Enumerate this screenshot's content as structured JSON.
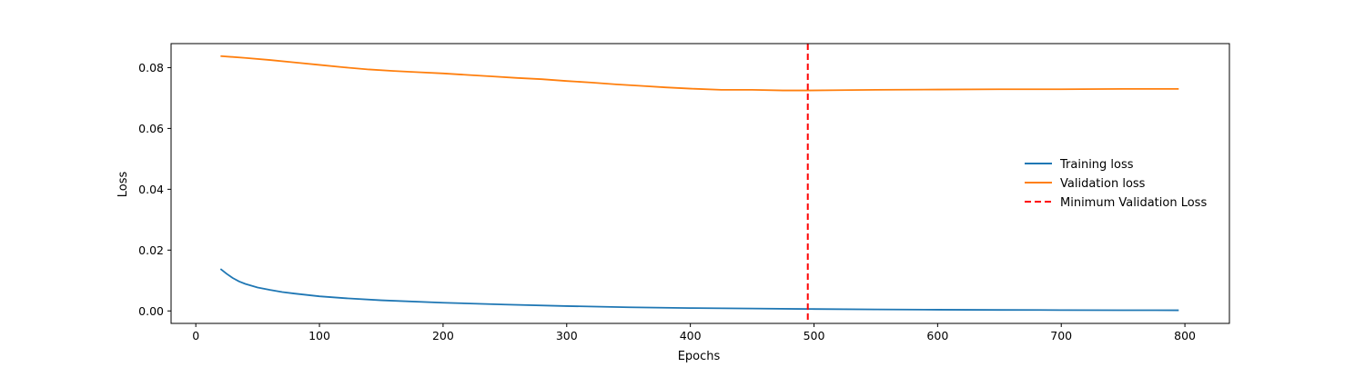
{
  "chart_data": {
    "type": "line",
    "title": "",
    "xlabel": "Epochs",
    "ylabel": "Loss",
    "xlim": [
      -20,
      836
    ],
    "ylim": [
      -0.0041,
      0.0879
    ],
    "xticks": [
      0,
      100,
      200,
      300,
      400,
      500,
      600,
      700,
      800
    ],
    "yticks": [
      0.0,
      0.02,
      0.04,
      0.06,
      0.08
    ],
    "xtick_labels": [
      "0",
      "100",
      "200",
      "300",
      "400",
      "500",
      "600",
      "700",
      "800"
    ],
    "ytick_labels": [
      "0.00",
      "0.02",
      "0.04",
      "0.06",
      "0.08"
    ],
    "legend_position": "center-right",
    "grid": false,
    "series": [
      {
        "name": "Training loss",
        "color": "#1f77b4",
        "style": "solid",
        "x": [
          20,
          25,
          30,
          35,
          40,
          50,
          60,
          70,
          80,
          100,
          120,
          150,
          200,
          250,
          300,
          350,
          400,
          450,
          500,
          550,
          600,
          650,
          700,
          750,
          795
        ],
        "y": [
          0.0138,
          0.0122,
          0.0108,
          0.0097,
          0.0089,
          0.0077,
          0.0069,
          0.0062,
          0.0057,
          0.0048,
          0.0042,
          0.0035,
          0.0027,
          0.0021,
          0.0016,
          0.0012,
          0.00095,
          0.00078,
          0.00062,
          0.0005,
          0.0004,
          0.00033,
          0.00028,
          0.00024,
          0.00022
        ]
      },
      {
        "name": "Validation loss",
        "color": "#ff7f0e",
        "style": "solid",
        "x": [
          20,
          40,
          60,
          80,
          100,
          120,
          140,
          160,
          180,
          200,
          220,
          240,
          260,
          280,
          300,
          320,
          340,
          360,
          380,
          400,
          425,
          450,
          475,
          495,
          520,
          550,
          600,
          650,
          700,
          750,
          795
        ],
        "y": [
          0.0838,
          0.0832,
          0.0825,
          0.0817,
          0.0809,
          0.0801,
          0.0794,
          0.0789,
          0.0785,
          0.0781,
          0.0776,
          0.0771,
          0.0766,
          0.0762,
          0.0756,
          0.0751,
          0.0745,
          0.074,
          0.0735,
          0.0731,
          0.0727,
          0.0727,
          0.0725,
          0.0725,
          0.0726,
          0.0727,
          0.0728,
          0.0729,
          0.0729,
          0.073,
          0.073
        ]
      }
    ],
    "vlines": [
      {
        "name": "Minimum Validation Loss",
        "x": 495,
        "color": "#ff0000",
        "style": "dashed"
      }
    ]
  }
}
